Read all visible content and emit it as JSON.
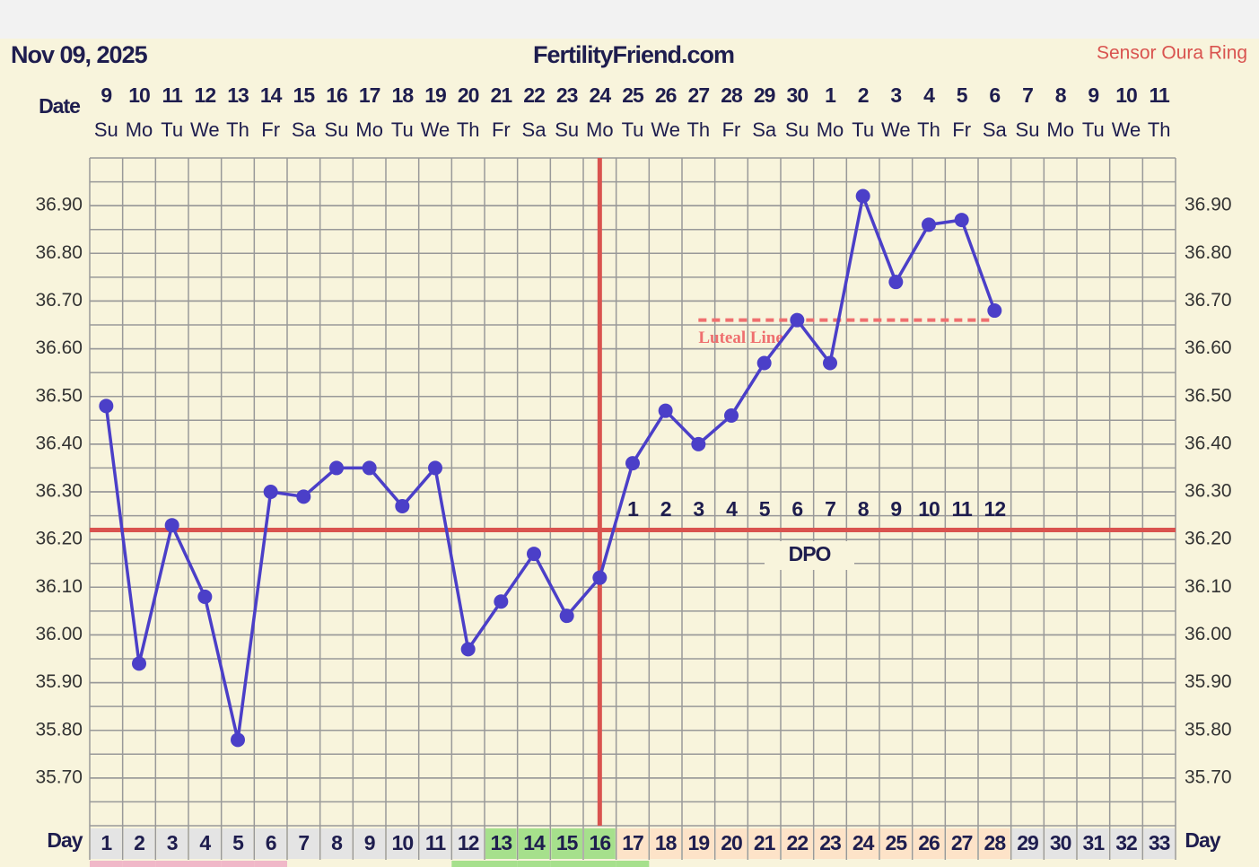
{
  "chart_data": {
    "type": "line",
    "title": "FertilityFriend.com",
    "date": "Nov 09, 2025",
    "source": "Sensor Oura Ring",
    "date_label": "Date",
    "day_label": "Day",
    "dates": [
      "9",
      "10",
      "11",
      "12",
      "13",
      "14",
      "15",
      "16",
      "17",
      "18",
      "19",
      "20",
      "21",
      "22",
      "23",
      "24",
      "25",
      "26",
      "27",
      "28",
      "29",
      "30",
      "1",
      "2",
      "3",
      "4",
      "5",
      "6",
      "7",
      "8",
      "9",
      "10",
      "11"
    ],
    "weekdays": [
      "Su",
      "Mo",
      "Tu",
      "We",
      "Th",
      "Fr",
      "Sa",
      "Su",
      "Mo",
      "Tu",
      "We",
      "Th",
      "Fr",
      "Sa",
      "Su",
      "Mo",
      "Tu",
      "We",
      "Th",
      "Fr",
      "Sa",
      "Su",
      "Mo",
      "Tu",
      "We",
      "Th",
      "Fr",
      "Sa",
      "Su",
      "Mo",
      "Tu",
      "We",
      "Th"
    ],
    "categories": [
      1,
      2,
      3,
      4,
      5,
      6,
      7,
      8,
      9,
      10,
      11,
      12,
      13,
      14,
      15,
      16,
      17,
      18,
      19,
      20,
      21,
      22,
      23,
      24,
      25,
      26,
      27,
      28,
      29,
      30,
      31,
      32,
      33
    ],
    "day_colors": [
      "#e4e4e4",
      "#e4e4e4",
      "#e4e4e4",
      "#e4e4e4",
      "#e4e4e4",
      "#e4e4e4",
      "#e4e4e4",
      "#e4e4e4",
      "#e4e4e4",
      "#e4e4e4",
      "#e4e4e4",
      "#e4e4e4",
      "#a6e08c",
      "#a6e08c",
      "#a6e08c",
      "#a6e08c",
      "#fde3c8",
      "#fde3c8",
      "#fde3c8",
      "#fde3c8",
      "#fde3c8",
      "#fde3c8",
      "#fde3c8",
      "#fde3c8",
      "#fde3c8",
      "#fde3c8",
      "#fde3c8",
      "#fde3c8",
      "#e4e4e4",
      "#e4e4e4",
      "#e4e4e4",
      "#e4e4e4",
      "#e4e4e4"
    ],
    "strip_colors": [
      "#f0b8c8",
      "#f0b8c8",
      "#f0b8c8",
      "#f0b8c8",
      "#f0b8c8",
      "#f0b8c8",
      null,
      null,
      null,
      null,
      null,
      "#a6e08c",
      "#a6e08c",
      "#a6e08c",
      "#a6e08c",
      "#a6e08c",
      "#a6e08c",
      null,
      null,
      null,
      null,
      null,
      null,
      null,
      null,
      null,
      null,
      null,
      null,
      null,
      null,
      null,
      null
    ],
    "values": [
      36.48,
      35.94,
      36.23,
      36.08,
      35.78,
      36.3,
      36.29,
      36.35,
      36.35,
      36.27,
      36.35,
      35.97,
      36.07,
      36.17,
      36.04,
      36.12,
      36.36,
      36.47,
      36.4,
      36.46,
      36.57,
      36.66,
      36.57,
      36.92,
      36.74,
      36.86,
      36.87,
      36.68,
      null,
      null,
      null,
      null,
      null
    ],
    "color": "#4b3fc8",
    "coverline": 36.22,
    "ovulation_day": 16,
    "line_color": "#d9534f",
    "luteal_line": {
      "label": "Luteal Line",
      "value": 36.66,
      "start_day": 19,
      "end_day": 28,
      "color": "#ef6f6f"
    },
    "dpo_label": "DPO",
    "dpo": [
      null,
      null,
      null,
      null,
      null,
      null,
      null,
      null,
      null,
      null,
      null,
      null,
      null,
      null,
      null,
      null,
      1,
      2,
      3,
      4,
      5,
      6,
      7,
      8,
      9,
      10,
      11,
      12,
      null,
      null,
      null,
      null,
      null
    ],
    "ylim": [
      35.6,
      37.0
    ],
    "yticks": [
      {
        "value": 35.7,
        "label": "35.70"
      },
      {
        "value": 35.8,
        "label": "35.80"
      },
      {
        "value": 35.9,
        "label": "35.90"
      },
      {
        "value": 36.0,
        "label": "36.00"
      },
      {
        "value": 36.1,
        "label": "36.10"
      },
      {
        "value": 36.2,
        "label": "36.20"
      },
      {
        "value": 36.3,
        "label": "36.30"
      },
      {
        "value": 36.4,
        "label": "36.40"
      },
      {
        "value": 36.5,
        "label": "36.50"
      },
      {
        "value": 36.6,
        "label": "36.60"
      },
      {
        "value": 36.7,
        "label": "36.70"
      },
      {
        "value": 36.8,
        "label": "36.80"
      },
      {
        "value": 36.9,
        "label": "36.90"
      }
    ],
    "grid": true
  }
}
